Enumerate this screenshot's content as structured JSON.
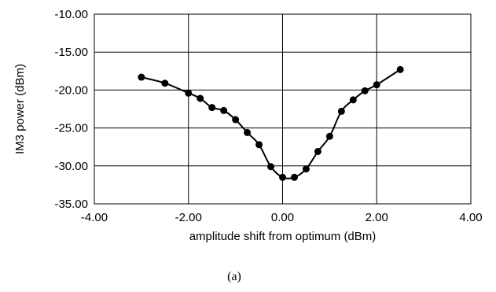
{
  "chart_data": {
    "type": "line",
    "xlabel": "amplitude shift from optimum (dBm)",
    "ylabel": "IM3 power (dBm)",
    "xlim": [
      -4.0,
      4.0
    ],
    "ylim": [
      -35.0,
      -10.0
    ],
    "x_ticks": [
      -4.0,
      -2.0,
      0.0,
      2.0,
      4.0
    ],
    "x_tick_labels": [
      "-4.00",
      "-2.00",
      "0.00",
      "2.00",
      "4.00"
    ],
    "y_ticks": [
      -10.0,
      -15.0,
      -20.0,
      -25.0,
      -30.0,
      -35.0
    ],
    "y_tick_labels": [
      "-10.00",
      "-15.00",
      "-20.00",
      "-25.00",
      "-30.00",
      "-35.00"
    ],
    "grid": true,
    "legend": "none",
    "series": [
      {
        "x": [
          -3.0,
          -2.5,
          -2.0,
          -1.75,
          -1.5,
          -1.25,
          -1.0,
          -0.75,
          -0.5,
          -0.25,
          0.0,
          0.25,
          0.5,
          0.75,
          1.0,
          1.25,
          1.5,
          1.75,
          2.0,
          2.5
        ],
        "y": [
          -18.3,
          -19.1,
          -20.4,
          -21.1,
          -22.3,
          -22.7,
          -23.9,
          -25.6,
          -27.2,
          -30.1,
          -31.5,
          -31.5,
          -30.4,
          -28.1,
          -26.1,
          -22.8,
          -21.3,
          -20.1,
          -19.3,
          -17.3
        ]
      }
    ]
  },
  "caption": "(a)",
  "style": {
    "line_color": "#000000",
    "marker_color": "#000000",
    "grid_color": "#000000",
    "background": "#ffffff"
  }
}
